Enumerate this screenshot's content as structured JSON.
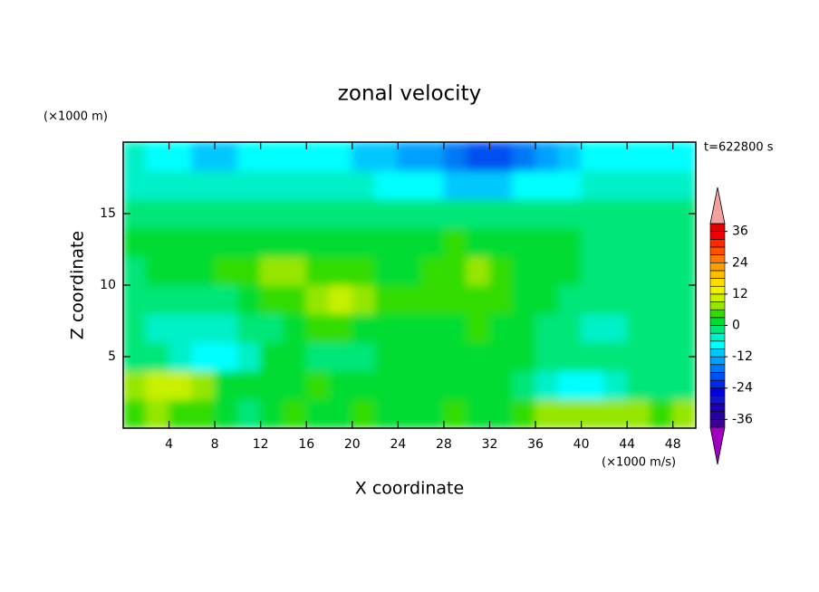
{
  "chart_data": {
    "type": "contour",
    "title": "zonal velocity",
    "x_label": "X coordinate",
    "y_label": "Z coordinate",
    "x_unit": "(×1000 m/s)",
    "y_unit": "(×1000 m)",
    "annotation": "t=622800 s",
    "xlim": [
      0,
      50
    ],
    "ylim": [
      0,
      20
    ],
    "xticks": [
      4,
      8,
      12,
      16,
      20,
      24,
      28,
      32,
      36,
      40,
      44,
      48
    ],
    "yticks": [
      5,
      10,
      15
    ],
    "x": [
      1,
      3,
      5,
      7,
      9,
      11,
      13,
      15,
      17,
      19,
      21,
      23,
      25,
      27,
      29,
      31,
      33,
      35,
      37,
      39,
      41,
      43,
      45,
      47,
      49
    ],
    "y": [
      1,
      3,
      5,
      7,
      9,
      11,
      13,
      15,
      17,
      19
    ],
    "z": [
      [
        4,
        6,
        5,
        3,
        0,
        -2,
        2,
        3,
        2,
        2,
        3,
        2,
        2,
        2,
        3,
        2,
        2,
        4,
        6,
        7,
        8,
        8,
        7,
        5,
        6
      ],
      [
        7,
        9,
        10,
        6,
        2,
        0,
        2,
        2,
        3,
        2,
        2,
        1,
        1,
        1,
        1,
        1,
        0,
        -3,
        -5,
        -7,
        -7,
        -5,
        -3,
        -2,
        -1
      ],
      [
        -2,
        -3,
        -4,
        -7,
        -8,
        -5,
        0,
        1,
        -1,
        -2,
        -1,
        1,
        1,
        2,
        1,
        1,
        2,
        0,
        -2,
        -3,
        -3,
        -3,
        -3,
        -2,
        -2
      ],
      [
        -3,
        -4,
        -5,
        -6,
        -5,
        -3,
        -1,
        2,
        3,
        4,
        2,
        1,
        2,
        2,
        2,
        3,
        2,
        0,
        -2,
        -3,
        -4,
        -4,
        -3,
        -3,
        -3
      ],
      [
        -3,
        -3,
        -3,
        -2,
        -1,
        1,
        3,
        5,
        7,
        9,
        6,
        4,
        4,
        5,
        4,
        5,
        4,
        2,
        0,
        -2,
        -3,
        -3,
        -2,
        -2,
        -2
      ],
      [
        -1,
        0,
        1,
        2,
        3,
        5,
        6,
        6,
        5,
        4,
        3,
        2,
        2,
        3,
        5,
        6,
        4,
        2,
        1,
        0,
        -1,
        -1,
        -2,
        -2,
        -2
      ],
      [
        1,
        1,
        1,
        0,
        0,
        1,
        1,
        1,
        1,
        1,
        1,
        1,
        1,
        2,
        3,
        2,
        2,
        1,
        0,
        0,
        -1,
        -1,
        -1,
        -1,
        -1
      ],
      [
        -2,
        -2,
        -2,
        -2,
        -3,
        -3,
        -2,
        -2,
        -2,
        -2,
        -2,
        -2,
        -2,
        -2,
        -2,
        -2,
        -3,
        -3,
        -3,
        -3,
        -3,
        -3,
        -2,
        -2,
        -2
      ],
      [
        -5,
        -5,
        -5,
        -5,
        -6,
        -6,
        -6,
        -6,
        -6,
        -6,
        -6,
        -7,
        -7,
        -9,
        -10,
        -10,
        -10,
        -9,
        -8,
        -7,
        -6,
        -6,
        -6,
        -6,
        -6
      ],
      [
        -6,
        -7,
        -9,
        -10,
        -10,
        -9,
        -8,
        -8,
        -8,
        -9,
        -10,
        -11,
        -13,
        -15,
        -18,
        -20,
        -19,
        -17,
        -14,
        -11,
        -9,
        -8,
        -7,
        -7,
        -7
      ]
    ],
    "levels": [
      -39,
      -36,
      -33,
      -30,
      -27,
      -24,
      -21,
      -18,
      -15,
      -12,
      -9,
      -6,
      -3,
      0,
      3,
      6,
      9,
      12,
      15,
      18,
      21,
      24,
      27,
      30,
      33,
      36,
      39
    ],
    "colors": [
      "#3c0096",
      "#28009a",
      "#1e00b4",
      "#1414c8",
      "#0000dc",
      "#0028e6",
      "#0050f0",
      "#0078f5",
      "#00a0ff",
      "#00c8ff",
      "#00ffff",
      "#00f0c8",
      "#00e678",
      "#00dc32",
      "#32dc00",
      "#96e600",
      "#c8f000",
      "#f0f000",
      "#ffdc00",
      "#ffbe00",
      "#ffa000",
      "#ff7800",
      "#ff5000",
      "#ff2800",
      "#f00000",
      "#dc0000"
    ],
    "under_color": "#a000c0",
    "over_color": "#f4a0a0",
    "cbar_ticks": [
      -36,
      -24,
      -12,
      0,
      12,
      24,
      36
    ]
  }
}
